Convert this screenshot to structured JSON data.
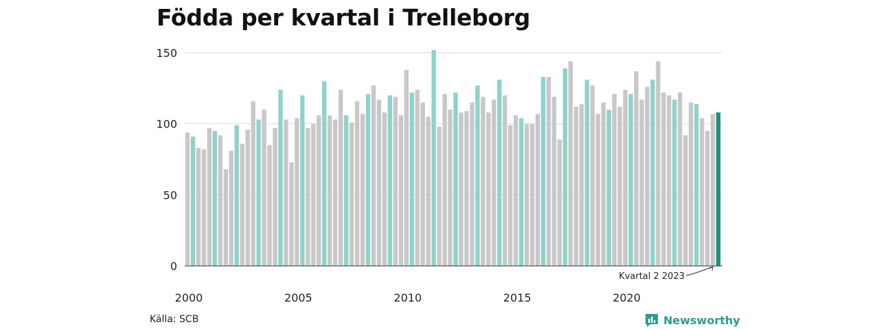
{
  "header": {
    "title": "Födda per kvartal i Trelleborg"
  },
  "footer": {
    "source": "Källa: SCB",
    "brand": "Newsworthy"
  },
  "icons": {
    "brand_logo": "bar-chart-speech-bubble-icon"
  },
  "colors": {
    "bar_default": "#c8c8c8",
    "bar_quarter2": "#8dd3cc",
    "bar_latest": "#1f8f80",
    "gridline": "#d9d9d9",
    "brand": "#2a9d8f"
  },
  "chart_data": {
    "type": "bar",
    "title": "Födda per kvartal i Trelleborg",
    "xlabel": "",
    "ylabel": "",
    "ylim": [
      0,
      150
    ],
    "yticks": [
      0,
      50,
      100,
      150
    ],
    "xtick_labels": [
      "2000",
      "2005",
      "2010",
      "2015",
      "2020"
    ],
    "grid": true,
    "start_year": 2000,
    "highlight": "quarter 2 of each year highlighted; latest bar (2023 Q2) in dark teal",
    "annotation": {
      "text": "Kvartal 2 2023",
      "target": "2023 Q2"
    },
    "values": [
      94,
      91,
      83,
      82,
      97,
      95,
      92,
      68,
      81,
      99,
      86,
      96,
      116,
      103,
      110,
      85,
      97,
      124,
      103,
      73,
      104,
      120,
      97,
      100,
      106,
      130,
      106,
      103,
      124,
      106,
      101,
      116,
      107,
      121,
      127,
      117,
      108,
      120,
      119,
      106,
      138,
      122,
      124,
      115,
      105,
      152,
      98,
      121,
      110,
      122,
      108,
      109,
      115,
      127,
      119,
      108,
      117,
      131,
      120,
      99,
      106,
      104,
      100,
      100,
      107,
      133,
      133,
      119,
      89,
      139,
      144,
      112,
      114,
      131,
      127,
      107,
      115,
      110,
      121,
      112,
      124,
      121,
      137,
      117,
      126,
      131,
      144,
      122,
      120,
      117,
      122,
      92,
      115,
      114,
      104,
      95,
      107,
      108
    ]
  }
}
